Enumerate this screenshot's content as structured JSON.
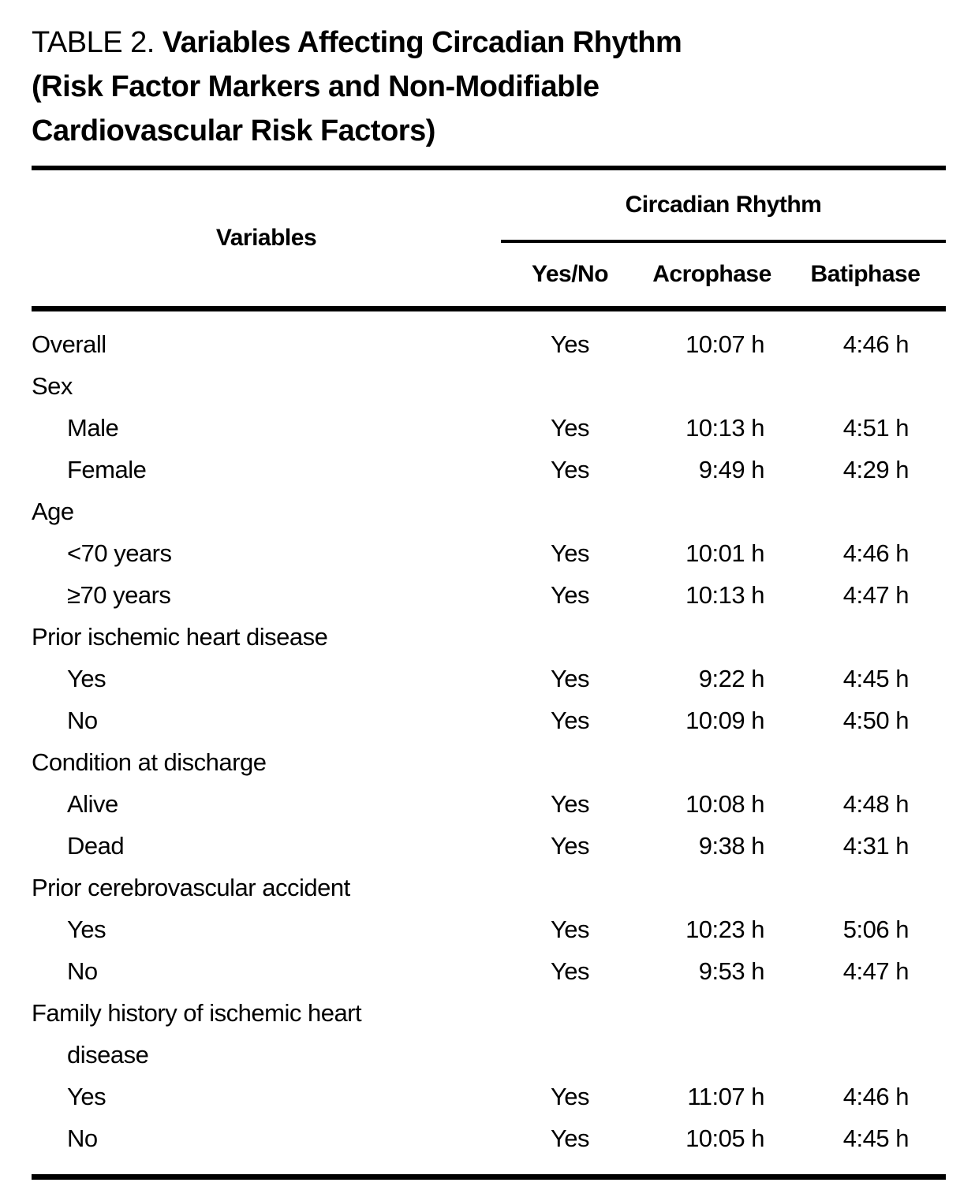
{
  "title": {
    "prefix": "TABLE 2. ",
    "main": "Variables Affecting Circadian Rhythm\n(Risk Factor Markers and Non-Modifiable\nCardiovascular Risk Factors)"
  },
  "table": {
    "variables_header": "Variables",
    "spanner_header": "Circadian Rhythm",
    "sub_headers": [
      "Yes/No",
      "Acrophase",
      "Batiphase"
    ],
    "rows": [
      {
        "label": "Overall",
        "indent": 0,
        "yes_no": "Yes",
        "acrophase": "10:07 h",
        "batiphase": "4:46 h"
      },
      {
        "label": "Sex",
        "indent": 0,
        "yes_no": "",
        "acrophase": "",
        "batiphase": ""
      },
      {
        "label": "Male",
        "indent": 1,
        "yes_no": "Yes",
        "acrophase": "10:13 h",
        "batiphase": "4:51 h"
      },
      {
        "label": "Female",
        "indent": 1,
        "yes_no": "Yes",
        "acrophase": "9:49 h",
        "batiphase": "4:29 h"
      },
      {
        "label": "Age",
        "indent": 0,
        "yes_no": "",
        "acrophase": "",
        "batiphase": ""
      },
      {
        "label": "<70 years",
        "indent": 1,
        "yes_no": "Yes",
        "acrophase": "10:01 h",
        "batiphase": "4:46 h"
      },
      {
        "label": "≥70 years",
        "indent": 1,
        "yes_no": "Yes",
        "acrophase": "10:13 h",
        "batiphase": "4:47 h"
      },
      {
        "label": "Prior ischemic heart disease",
        "indent": 0,
        "yes_no": "",
        "acrophase": "",
        "batiphase": ""
      },
      {
        "label": "Yes",
        "indent": 1,
        "yes_no": "Yes",
        "acrophase": "9:22 h",
        "batiphase": "4:45 h"
      },
      {
        "label": "No",
        "indent": 1,
        "yes_no": "Yes",
        "acrophase": "10:09 h",
        "batiphase": "4:50 h"
      },
      {
        "label": "Condition at discharge",
        "indent": 0,
        "yes_no": "",
        "acrophase": "",
        "batiphase": ""
      },
      {
        "label": "Alive",
        "indent": 1,
        "yes_no": "Yes",
        "acrophase": "10:08 h",
        "batiphase": "4:48 h"
      },
      {
        "label": "Dead",
        "indent": 1,
        "yes_no": "Yes",
        "acrophase": "9:38 h",
        "batiphase": "4:31 h"
      },
      {
        "label": "Prior cerebrovascular accident",
        "indent": 0,
        "yes_no": "",
        "acrophase": "",
        "batiphase": ""
      },
      {
        "label": "Yes",
        "indent": 1,
        "yes_no": "Yes",
        "acrophase": "10:23 h",
        "batiphase": "5:06 h"
      },
      {
        "label": "No",
        "indent": 1,
        "yes_no": "Yes",
        "acrophase": "9:53 h",
        "batiphase": "4:47 h"
      },
      {
        "label": "Family history of ischemic heart\ndisease",
        "indent": 0,
        "hanging": true,
        "yes_no": "",
        "acrophase": "",
        "batiphase": ""
      },
      {
        "label": "Yes",
        "indent": 1,
        "yes_no": "Yes",
        "acrophase": "11:07 h",
        "batiphase": "4:46 h"
      },
      {
        "label": "No",
        "indent": 1,
        "yes_no": "Yes",
        "acrophase": "10:05 h",
        "batiphase": "4:45 h"
      }
    ]
  },
  "colors": {
    "text": "#000000",
    "rule": "#000000",
    "background": "#ffffff"
  }
}
